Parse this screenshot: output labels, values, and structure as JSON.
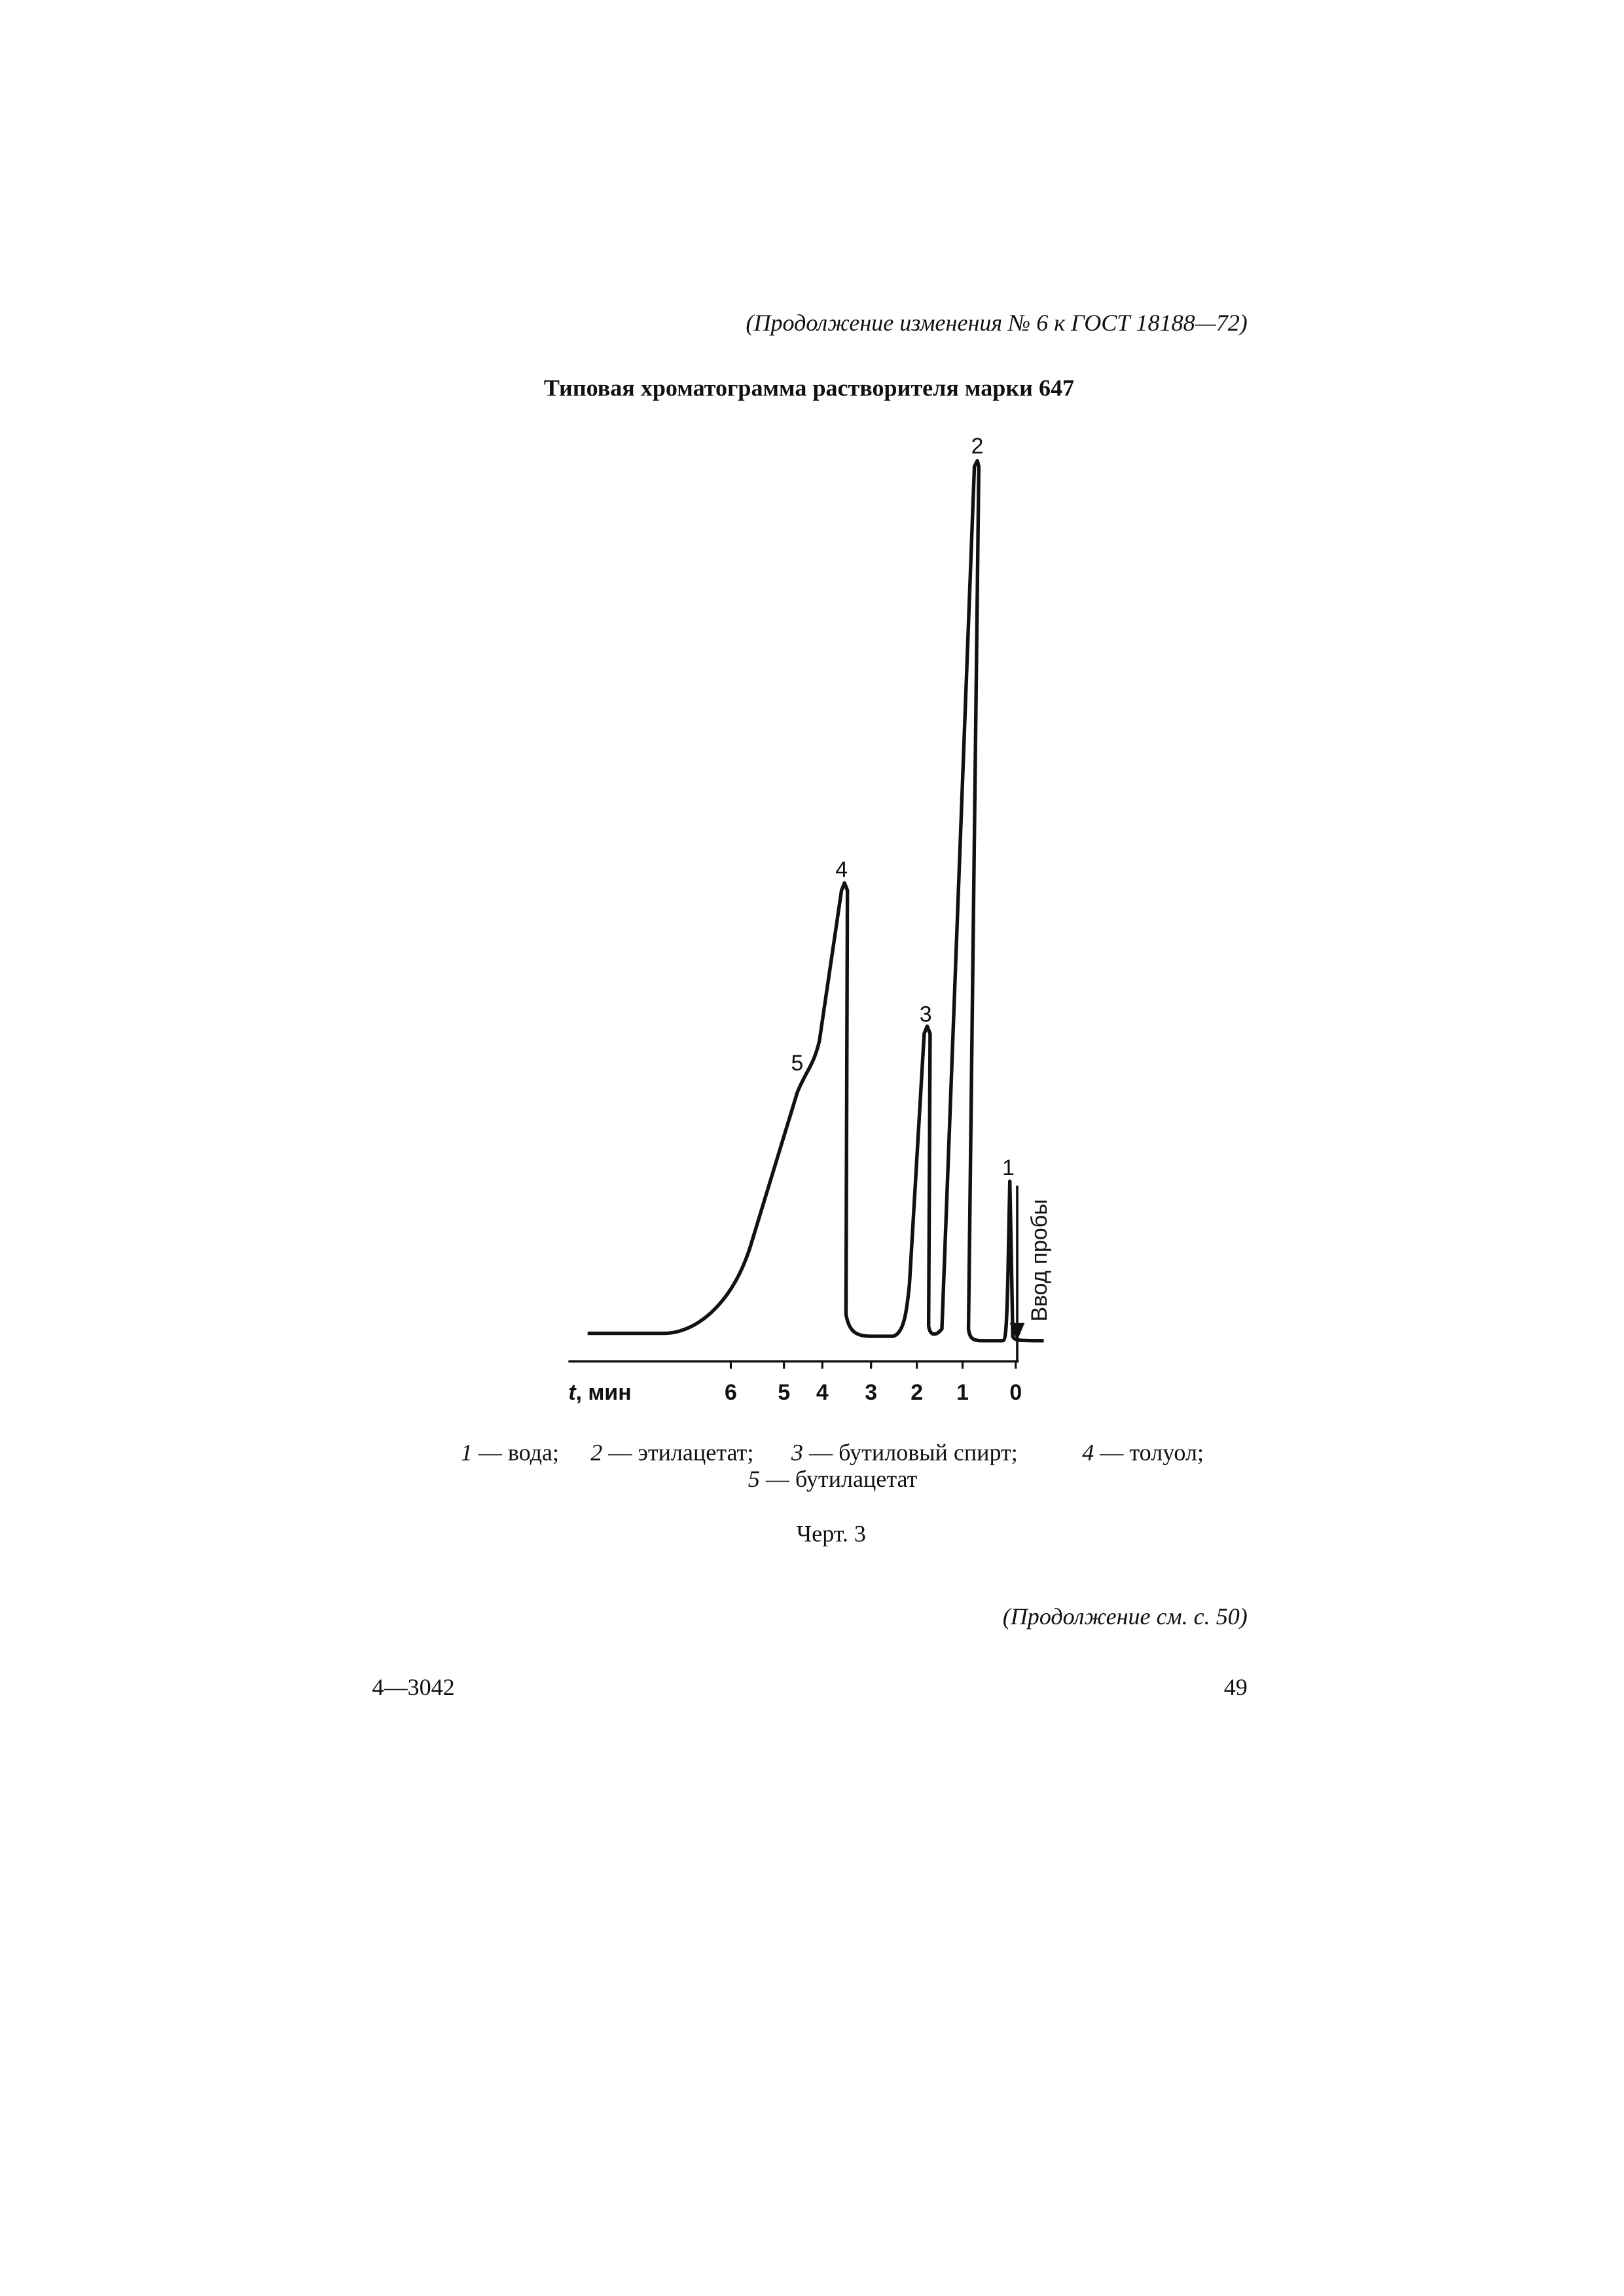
{
  "header": "(Продолжение изменения № 6 к ГОСТ 18188—72)",
  "title": "Типовая хроматограмма растворителя марки  647",
  "figure": {
    "x_axis_label": {
      "variable": "t",
      "unit": ", мин"
    },
    "x_ticks": [
      "6",
      "5",
      "4",
      "3",
      "2",
      "1",
      "0"
    ],
    "injection_label": "Ввод пробы",
    "peak_labels": [
      "1",
      "2",
      "3",
      "4",
      "5"
    ]
  },
  "legend": [
    {
      "number": "1",
      "text": "— вода;"
    },
    {
      "number": "2",
      "text": "— этилацетат;"
    },
    {
      "number": "3",
      "text": "— бутиловый спирт;"
    },
    {
      "number": "4",
      "text": "— толуол;"
    },
    {
      "number": "5",
      "text": "— бутилацетат"
    }
  ],
  "caption": "Черт. 3",
  "continuation": "(Продолжение см. с. 50)",
  "footer": {
    "code": "4—3042",
    "page": "49"
  }
}
